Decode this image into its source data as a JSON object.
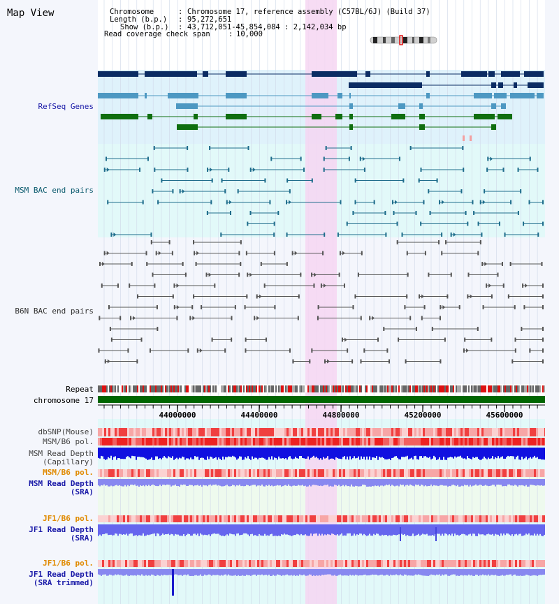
{
  "title": "Map View",
  "header": {
    "chromosome_key": "Chromosome",
    "chromosome_val": "Chromosome 17, reference assembly (C57BL/6J) (Build 37)",
    "length_key": "Length (b.p.)",
    "length_val": "95,272,651",
    "show_key": "Show (b.p.)",
    "show_val": "43,712,051-45,854,084 : 2,142,034 bp",
    "coverage_key": "Read coverage check span",
    "coverage_val": "10,000"
  },
  "tracks": {
    "refseq": "RefSeq Genes",
    "msm_bac": "MSM BAC end pairs",
    "b6n_bac": "B6N BAC end pairs",
    "repeat": "Repeat",
    "chromosome": "chromosome 17",
    "dbsnp": "dbSNP(Mouse)",
    "msm_b6_pol": "MSM/B6 pol.",
    "msm_depth_cap_1": "MSM Read Depth",
    "msm_depth_cap_2": "(Capillary)",
    "msm_b6_pol2": "MSM/B6 pol.",
    "msm_depth_sra_1": "MSM Read Depth",
    "msm_depth_sra_2": "(SRA)",
    "jf1_b6_pol": "JF1/B6 pol.",
    "jf1_depth_sra_1": "JF1 Read Depth",
    "jf1_depth_sra_2": "(SRA)",
    "jf1_b6_pol2": "JF1/B6 pol.",
    "jf1_depth_trim_1": "JF1 Read Depth",
    "jf1_depth_trim_2": "(SRA trimmed)"
  },
  "axis": {
    "ticks": [
      "44000000",
      "44400000",
      "44800000",
      "45200000",
      "45600000"
    ]
  },
  "colors": {
    "refseq_bg": "#dff2fb",
    "msm_bg": "#e2f9f9",
    "b6n_bg": "#f4f6fc",
    "highlight": "#f6d6f2",
    "refseq_dark": "#0b2c63",
    "refseq_light": "#4d98c2",
    "refseq_green": "#0f6e0f",
    "msm_line": "#1f6d8c",
    "b6n_line": "#555555",
    "label_blue": "#1a1aa8",
    "label_teal": "#0b5a6e",
    "label_orange": "#e08a00"
  }
}
